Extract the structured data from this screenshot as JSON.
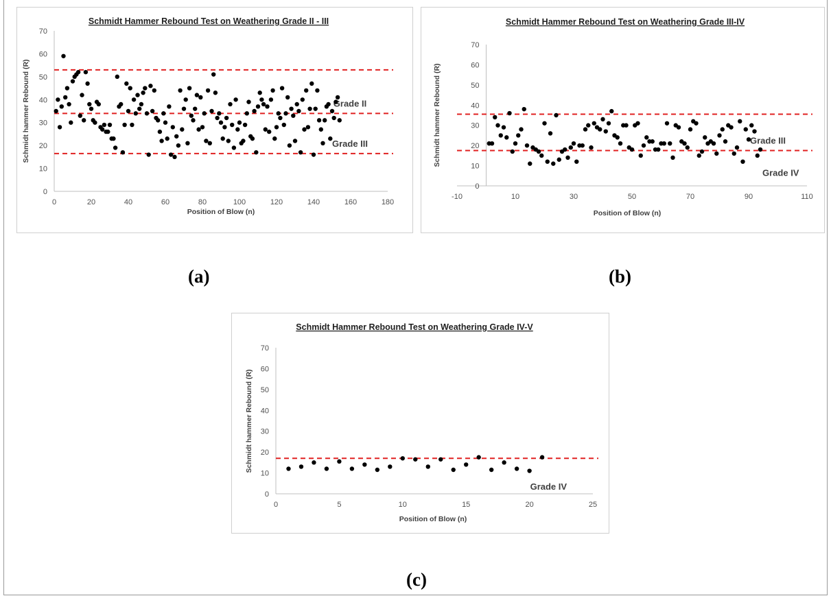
{
  "panels": [
    {
      "label": "(a)"
    },
    {
      "label": "(b)"
    },
    {
      "label": "(c)"
    }
  ],
  "colors": {
    "points": "#000000",
    "threshold_line": "#e02020",
    "axis": "#bfbfbf"
  },
  "chart_data": [
    {
      "type": "scatter",
      "title": "Schmidt Hammer Rebound Test on Weathering Grade II - III",
      "xlabel": "Position of Blow (n)",
      "ylabel": "Schmidt hammer Rebound (R)",
      "xlim": [
        0,
        180
      ],
      "ylim": [
        0,
        70
      ],
      "xticks": [
        0,
        20,
        40,
        60,
        80,
        100,
        120,
        140,
        160,
        180
      ],
      "yticks": [
        0,
        10,
        20,
        30,
        40,
        50,
        60,
        70
      ],
      "grid": false,
      "reference_lines": [
        {
          "y": 53,
          "label": ""
        },
        {
          "y": 34,
          "label": "Grade II"
        },
        {
          "y": 16.5,
          "label": "Grade III"
        }
      ],
      "y": [
        35,
        40,
        28,
        37,
        59,
        41,
        45,
        38,
        30,
        48,
        50,
        51,
        52,
        33,
        42,
        31,
        52,
        47,
        38,
        36,
        31,
        30,
        39,
        38,
        28,
        27,
        29,
        26,
        26,
        29,
        23,
        23,
        19,
        50,
        37,
        38,
        17,
        29,
        47,
        35,
        45,
        29,
        40,
        34,
        42,
        36,
        38,
        43,
        45,
        34,
        16,
        46,
        35,
        44,
        32,
        31,
        26,
        22,
        34,
        30,
        23,
        37,
        16,
        28,
        15,
        24,
        20,
        44,
        27,
        36,
        40,
        21,
        45,
        33,
        31,
        36,
        42,
        27,
        41,
        28,
        34,
        22,
        44,
        21,
        35,
        51,
        43,
        32,
        34,
        30,
        23,
        28,
        32,
        22,
        38,
        29,
        19,
        40,
        27,
        30,
        21,
        22,
        29,
        34,
        39,
        24,
        23,
        35,
        17,
        37,
        43,
        40,
        38,
        27,
        37,
        26,
        40,
        44,
        23,
        28,
        34,
        32,
        45,
        29,
        34,
        41,
        20,
        36,
        33,
        22,
        38,
        35,
        17,
        40,
        27,
        44,
        28,
        36,
        47,
        16,
        36,
        44,
        31,
        27,
        21,
        31,
        37,
        38,
        23,
        35,
        32,
        39,
        41,
        31
      ]
    },
    {
      "type": "scatter",
      "title": "Schmidt Hammer Rebound Test on Weathering Grade III-IV",
      "xlabel": "Position of Blow (n)",
      "ylabel": "Schmidt hammer Rebound (R)",
      "xlim": [
        -10,
        110
      ],
      "ylim": [
        0,
        70
      ],
      "xticks": [
        -10,
        10,
        30,
        50,
        70,
        90,
        110
      ],
      "yticks": [
        0,
        10,
        20,
        30,
        40,
        50,
        60,
        70
      ],
      "grid": false,
      "reference_lines": [
        {
          "y": 35.5,
          "label": ""
        },
        {
          "y": 17.5,
          "label": "Grade III"
        }
      ],
      "annotations": [
        {
          "text": "Grade IV",
          "x": 101,
          "y": 5
        }
      ],
      "y": [
        21,
        21,
        34,
        30,
        25,
        29,
        24,
        36,
        17,
        21,
        25,
        28,
        38,
        20,
        11,
        19,
        18,
        17,
        15,
        31,
        12,
        26,
        11,
        35,
        13,
        17,
        18,
        14,
        19,
        21,
        12,
        20,
        20,
        28,
        30,
        19,
        31,
        29,
        28,
        33,
        27,
        31,
        37,
        25,
        24,
        21,
        30,
        30,
        19,
        18,
        30,
        31,
        15,
        20,
        24,
        22,
        22,
        18,
        18,
        21,
        21,
        31,
        21,
        14,
        30,
        29,
        22,
        21,
        19,
        28,
        32,
        31,
        15,
        17,
        24,
        21,
        22,
        21,
        16,
        25,
        28,
        22,
        30,
        29,
        16,
        19,
        32,
        12,
        28,
        23,
        30,
        27,
        15,
        18
      ]
    },
    {
      "type": "scatter",
      "title": "Schmidt Hammer Rebound Test on Weathering Grade IV-V",
      "xlabel": "Position of Blow (n)",
      "ylabel": "Schmidt hammer Rebound (R)",
      "xlim": [
        0,
        25
      ],
      "ylim": [
        0,
        70
      ],
      "xticks": [
        0,
        5,
        10,
        15,
        20,
        25
      ],
      "yticks": [
        0,
        10,
        20,
        30,
        40,
        50,
        60,
        70
      ],
      "grid": false,
      "reference_lines": [
        {
          "y": 17,
          "label": ""
        }
      ],
      "annotations": [
        {
          "text": "Grade IV",
          "x": 21.5,
          "y": 2
        }
      ],
      "y": [
        12,
        13,
        15,
        12,
        15.5,
        12,
        14,
        11.5,
        13,
        17,
        16.5,
        13,
        16.5,
        11.5,
        14,
        17.5,
        11.5,
        15,
        12,
        11,
        17.5
      ]
    }
  ]
}
